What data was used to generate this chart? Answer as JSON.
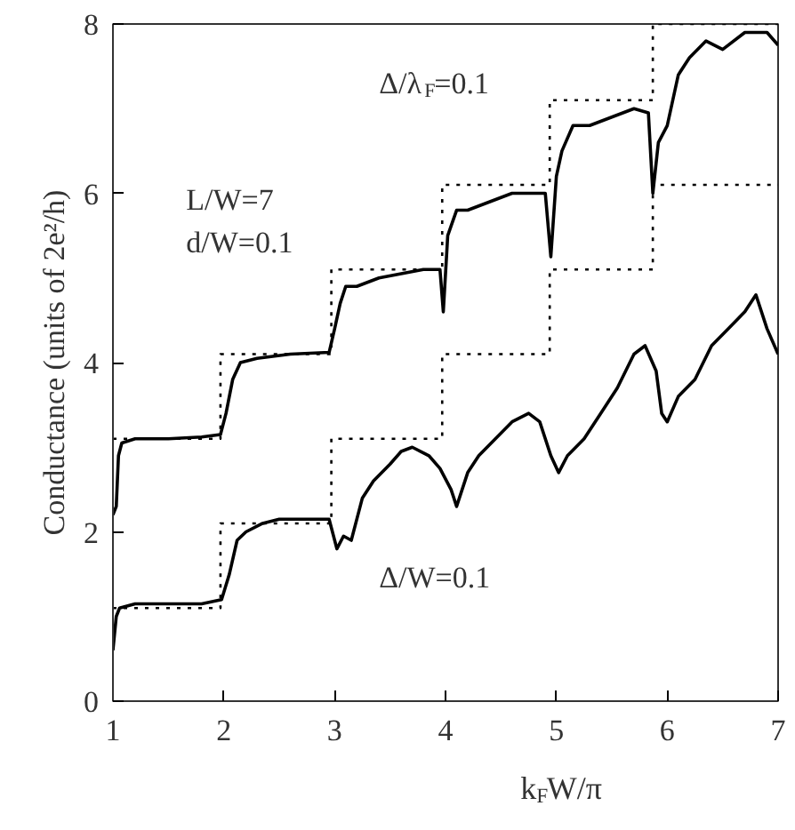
{
  "chart_data": {
    "type": "line",
    "xlabel": "k$_{F}$W/π",
    "ylabel": "Conductance (units of 2e²/h)",
    "xlim": [
      1,
      7
    ],
    "ylim": [
      0,
      8
    ],
    "xticks": [
      1,
      2,
      3,
      4,
      5,
      6,
      7
    ],
    "yticks": [
      0,
      2,
      4,
      6,
      8
    ],
    "grid": false,
    "marker": "none",
    "annotations": [
      "L/W=7",
      "d/W=0.1"
    ],
    "series": [
      {
        "name": "Δ/λ$_{F}$=0.1",
        "color": "#000000",
        "line_style": "solid",
        "x": [
          1.0,
          1.03,
          1.05,
          1.08,
          1.2,
          1.5,
          1.8,
          1.97,
          2.02,
          2.08,
          2.15,
          2.3,
          2.6,
          2.95,
          3.0,
          3.05,
          3.1,
          3.2,
          3.4,
          3.6,
          3.8,
          3.95,
          3.98,
          4.02,
          4.1,
          4.2,
          4.4,
          4.6,
          4.9,
          4.95,
          5.0,
          5.05,
          5.15,
          5.3,
          5.5,
          5.7,
          5.83,
          5.87,
          5.92,
          6.0,
          6.1,
          6.2,
          6.35,
          6.5,
          6.7,
          6.9,
          7.0
        ],
        "values": [
          2.2,
          2.3,
          2.9,
          3.05,
          3.1,
          3.1,
          3.12,
          3.15,
          3.4,
          3.8,
          4.0,
          4.05,
          4.1,
          4.12,
          4.4,
          4.7,
          4.9,
          4.9,
          5.0,
          5.05,
          5.1,
          5.1,
          4.6,
          5.5,
          5.8,
          5.8,
          5.9,
          6.0,
          6.0,
          5.25,
          6.2,
          6.5,
          6.8,
          6.8,
          6.9,
          7.0,
          6.95,
          6.0,
          6.6,
          6.8,
          7.4,
          7.6,
          7.8,
          7.7,
          7.9,
          7.9,
          7.75
        ]
      },
      {
        "name": "Δ/W=0.1",
        "color": "#000000",
        "line_style": "solid",
        "x": [
          1.0,
          1.03,
          1.06,
          1.2,
          1.5,
          1.8,
          1.98,
          2.05,
          2.12,
          2.2,
          2.35,
          2.5,
          2.7,
          2.95,
          3.02,
          3.08,
          3.15,
          3.25,
          3.35,
          3.5,
          3.6,
          3.7,
          3.85,
          3.95,
          4.05,
          4.1,
          4.2,
          4.3,
          4.45,
          4.6,
          4.75,
          4.85,
          4.95,
          5.02,
          5.1,
          5.25,
          5.4,
          5.55,
          5.7,
          5.8,
          5.9,
          5.95,
          6.0,
          6.1,
          6.25,
          6.4,
          6.55,
          6.7,
          6.8,
          6.9,
          7.0
        ],
        "values": [
          0.6,
          1.0,
          1.1,
          1.15,
          1.15,
          1.15,
          1.2,
          1.5,
          1.9,
          2.0,
          2.1,
          2.15,
          2.15,
          2.15,
          1.8,
          1.95,
          1.9,
          2.4,
          2.6,
          2.8,
          2.95,
          3.0,
          2.9,
          2.75,
          2.5,
          2.3,
          2.7,
          2.9,
          3.1,
          3.3,
          3.4,
          3.3,
          2.9,
          2.7,
          2.9,
          3.1,
          3.4,
          3.7,
          4.1,
          4.2,
          3.9,
          3.4,
          3.3,
          3.6,
          3.8,
          4.2,
          4.4,
          4.6,
          4.8,
          4.4,
          4.1
        ]
      },
      {
        "type": "step",
        "color": "#000000",
        "line_style": "dotted",
        "x": [
          1,
          1.97,
          2.97,
          3.97,
          4.94,
          5.87,
          7
        ],
        "values": [
          3.1,
          4.1,
          5.1,
          6.1,
          7.1,
          8.0,
          8.0
        ]
      },
      {
        "type": "step",
        "color": "#000000",
        "line_style": "dotted",
        "x": [
          1,
          1.97,
          2.97,
          3.97,
          4.94,
          5.87,
          7
        ],
        "values": [
          1.1,
          2.1,
          3.1,
          4.1,
          5.1,
          6.1,
          6.1
        ]
      }
    ]
  }
}
